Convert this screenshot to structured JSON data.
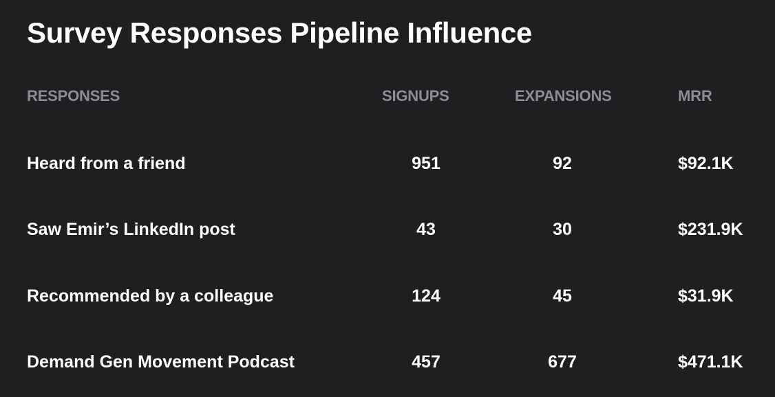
{
  "title": "Survey Responses Pipeline Influence",
  "columns": {
    "responses": "RESPONSES",
    "signups": "SIGNUPS",
    "expansions": "EXPANSIONS",
    "mrr": "MRR"
  },
  "rows": [
    {
      "response": "Heard from a friend",
      "signups": "951",
      "expansions": "92",
      "mrr": "$92.1K"
    },
    {
      "response": "Saw Emir’s LinkedIn post",
      "signups": "43",
      "expansions": "30",
      "mrr": "$231.9K"
    },
    {
      "response": "Recommended by a colleague",
      "signups": "124",
      "expansions": "45",
      "mrr": "$31.9K"
    },
    {
      "response": "Demand Gen Movement Podcast",
      "signups": "457",
      "expansions": "677",
      "mrr": "$471.1K"
    }
  ],
  "colors": {
    "background": "#1f1f21",
    "text": "#ffffff",
    "header_text": "#8b8e98"
  }
}
